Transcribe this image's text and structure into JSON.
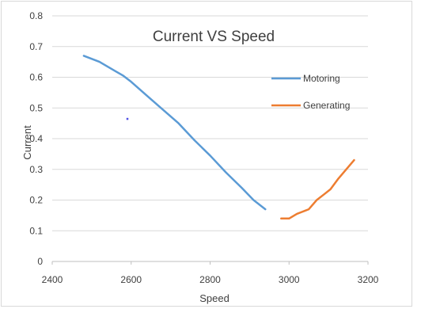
{
  "chart_data": {
    "type": "line",
    "title": "Current VS Speed",
    "xlabel": "Speed",
    "ylabel": "Current",
    "xlim": [
      2400,
      3200
    ],
    "ylim": [
      0,
      0.8
    ],
    "x_ticks": [
      "2400",
      "2600",
      "2800",
      "3000",
      "3200"
    ],
    "y_ticks": [
      "0",
      "0.1",
      "0.2",
      "0.3",
      "0.4",
      "0.5",
      "0.6",
      "0.7",
      "0.8"
    ],
    "grid": true,
    "legend_position": "right",
    "series": [
      {
        "name": "Motoring",
        "color": "#5b9bd5",
        "x": [
          2480,
          2520,
          2560,
          2580,
          2600,
          2640,
          2680,
          2720,
          2760,
          2800,
          2840,
          2880,
          2910,
          2940
        ],
        "y": [
          0.67,
          0.65,
          0.62,
          0.605,
          0.585,
          0.54,
          0.495,
          0.45,
          0.395,
          0.345,
          0.29,
          0.24,
          0.2,
          0.17
        ]
      },
      {
        "name": "Generating",
        "color": "#ed7d31",
        "x": [
          2980,
          3000,
          3020,
          3040,
          3050,
          3070,
          3090,
          3105,
          3125,
          3165
        ],
        "y": [
          0.14,
          0.14,
          0.155,
          0.165,
          0.17,
          0.2,
          0.22,
          0.235,
          0.27,
          0.33
        ]
      }
    ],
    "stray_point": {
      "x": 2590,
      "y": 0.465,
      "color": "#5050e6"
    }
  }
}
